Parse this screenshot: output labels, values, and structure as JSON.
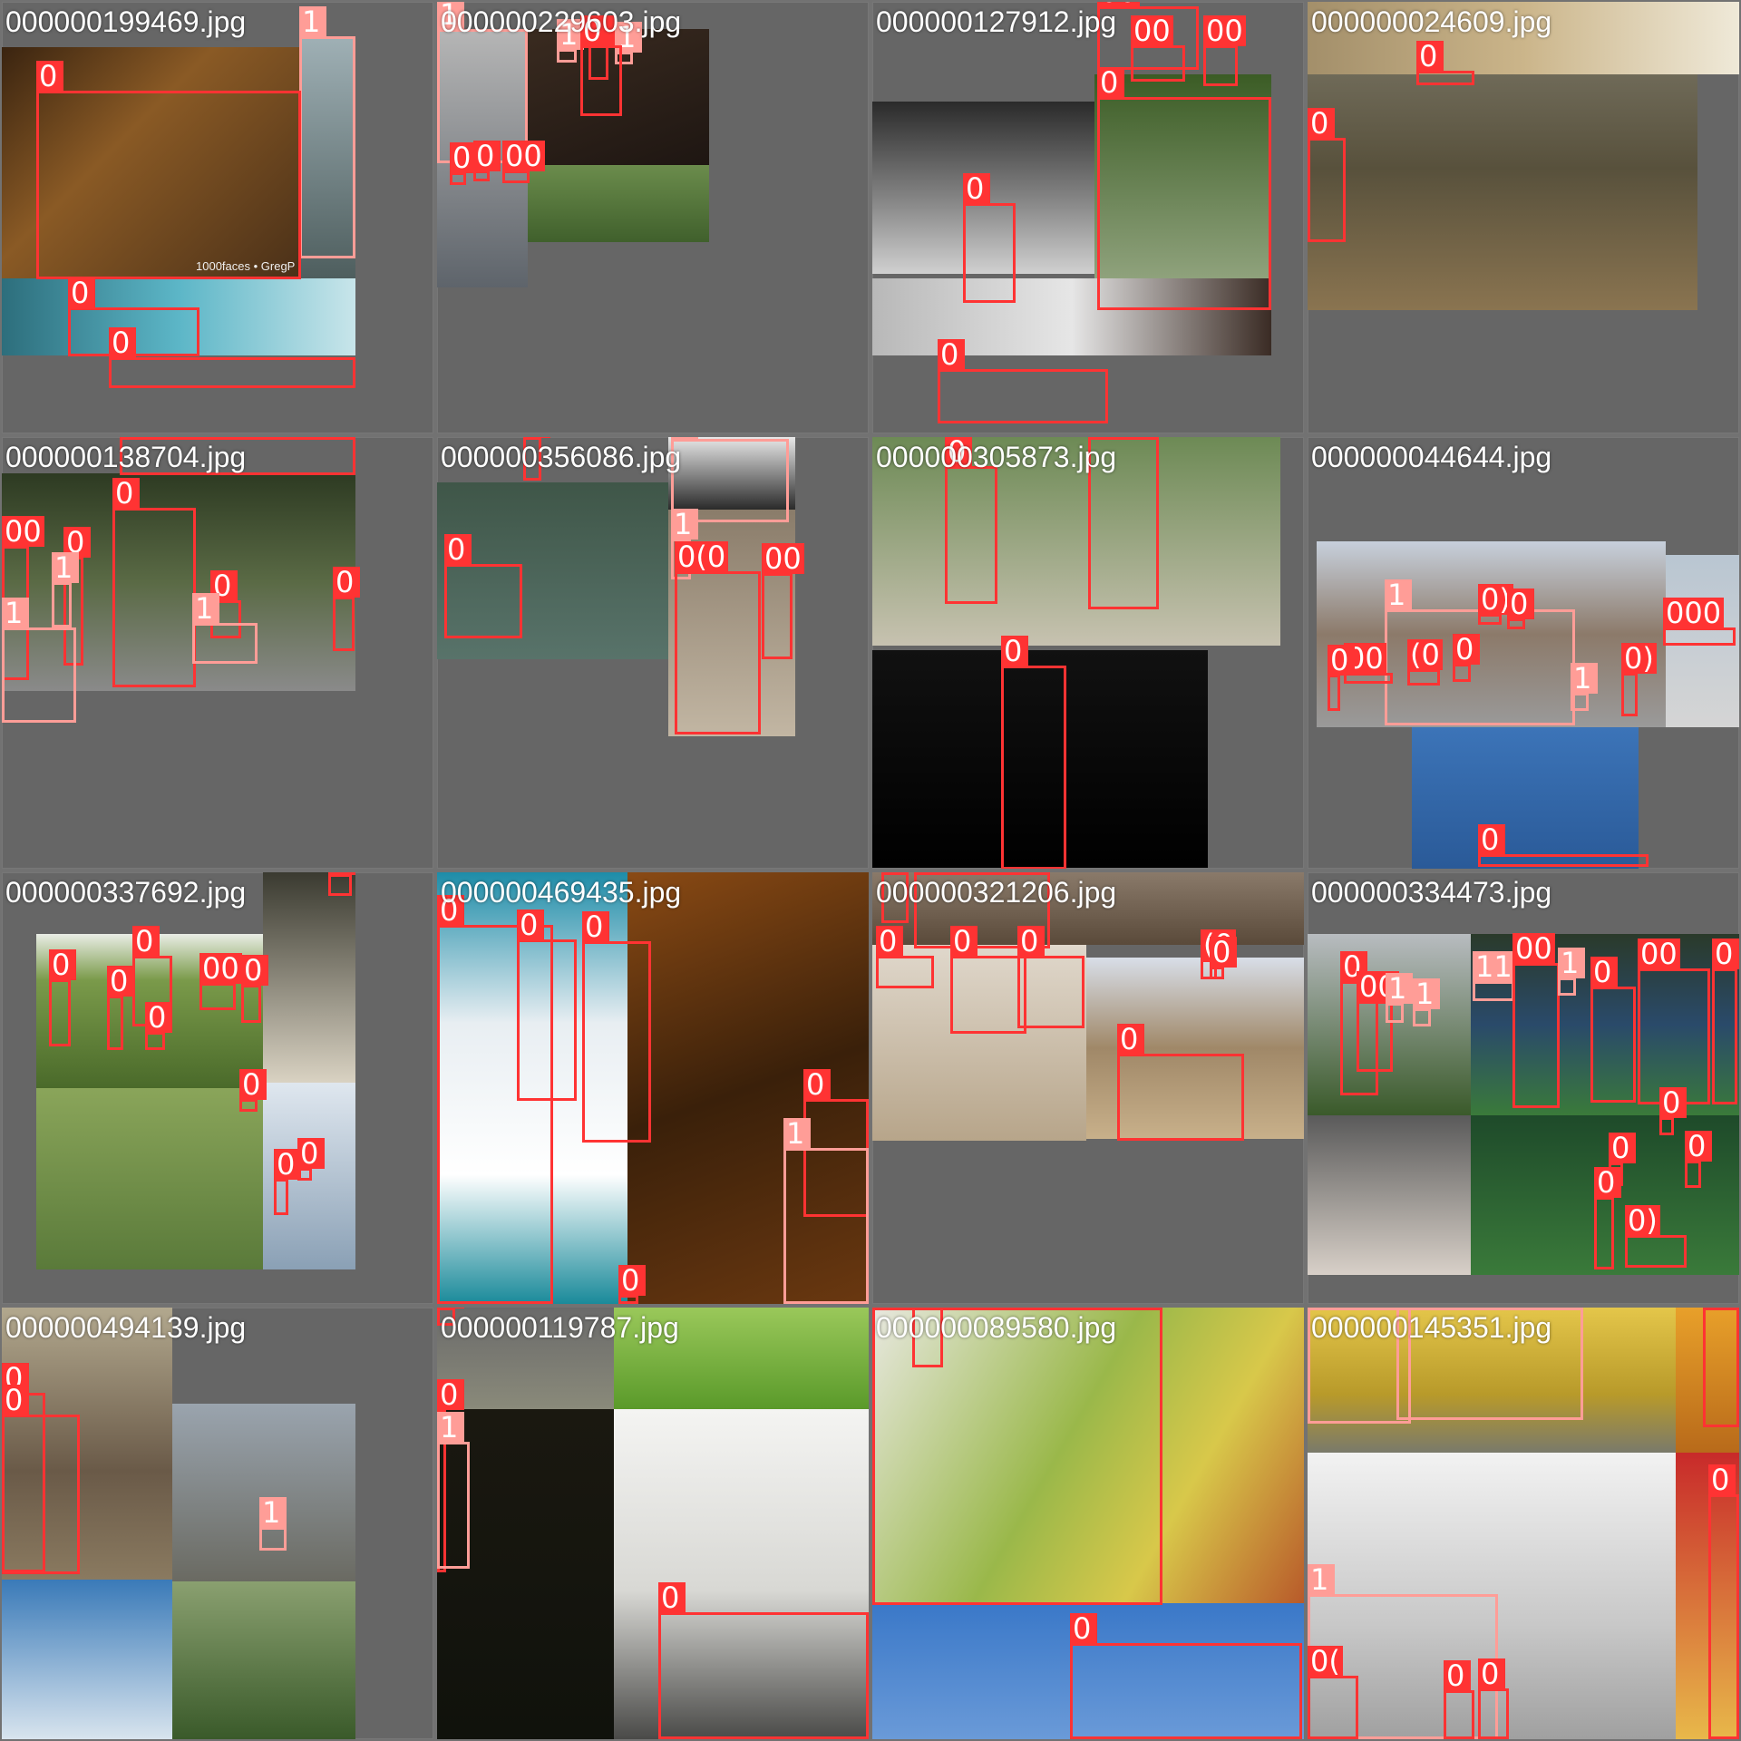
{
  "mosaic": {
    "tiles": [
      {
        "filename": "000000199469.jpg",
        "labels": [
          "1",
          "0",
          "0",
          "0"
        ],
        "footer_text": "1000faces • GregP"
      },
      {
        "filename": "000000229603.jpg",
        "labels": [
          "1",
          "1",
          "0",
          "1",
          "0",
          "0",
          "0",
          "00"
        ]
      },
      {
        "filename": "000000127912.jpg",
        "labels": [
          "00",
          "00",
          "00",
          "0",
          "0",
          "0"
        ]
      },
      {
        "filename": "000000024609.jpg",
        "labels": [
          "0",
          "0"
        ]
      },
      {
        "filename": "000000138704.jpg",
        "labels": [
          "0",
          "0",
          "00",
          "0",
          "1",
          "0",
          "1",
          "0",
          "1"
        ]
      },
      {
        "filename": "000000356086.jpg",
        "labels": [
          "0",
          "1",
          "0",
          "1",
          "0(0",
          "00"
        ]
      },
      {
        "filename": "000000305873.jpg",
        "labels": [
          "0",
          "0",
          "0"
        ]
      },
      {
        "filename": "000000044644.jpg",
        "labels": [
          "1",
          "0)",
          "0",
          "00",
          "(0",
          "0",
          "0",
          "000",
          "0)",
          "1",
          "0"
        ]
      },
      {
        "filename": "000000337692.jpg",
        "labels": [
          "0",
          "0",
          "0",
          "0",
          "0",
          "00",
          "0",
          "0",
          "0",
          "0"
        ]
      },
      {
        "filename": "000000469435.jpg",
        "labels": [
          "0",
          "0",
          "0",
          "0",
          "1",
          "0"
        ]
      },
      {
        "filename": "000000321206.jpg",
        "labels": [
          "0",
          "0",
          "0",
          "0",
          "0",
          "0",
          "(0",
          "0"
        ]
      },
      {
        "filename": "000000334473.jpg",
        "labels": [
          "0",
          "00",
          "1",
          "11",
          "00",
          "1",
          "1",
          "0",
          "00",
          "0",
          "0",
          "0",
          "0",
          "0)",
          "0"
        ]
      },
      {
        "filename": "000000494139.jpg",
        "labels": [
          "0",
          "0",
          "1"
        ]
      },
      {
        "filename": "000000119787.jpg",
        "labels": [
          "0",
          "1",
          "0",
          "0"
        ]
      },
      {
        "filename": "000000089580.jpg",
        "labels": [
          "0",
          "0",
          "0"
        ]
      },
      {
        "filename": "000000145351.jpg",
        "labels": [
          "1",
          "1",
          "0",
          "0",
          "1",
          "0(",
          "0",
          "0"
        ]
      }
    ]
  },
  "colors": {
    "class_0": "#ff3333",
    "class_1": "#ff9d97",
    "background": "#727272"
  }
}
